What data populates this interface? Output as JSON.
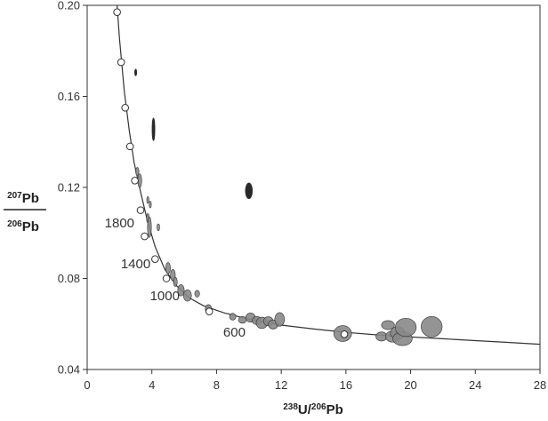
{
  "chart_data": {
    "type": "scatter",
    "xlabel": {
      "x_sup1": "238",
      "x_main1": "U/",
      "x_sup2": "206",
      "x_main2": "Pb"
    },
    "ylabel": {
      "numerator_sup": "207",
      "numerator_main": "Pb",
      "denominator_sup": "206",
      "denominator_main": "Pb"
    },
    "xlim": [
      0,
      28
    ],
    "ylim": [
      0.04,
      0.2
    ],
    "x_ticks": [
      "0",
      "4",
      "8",
      "12",
      "16",
      "20",
      "24",
      "28"
    ],
    "y_ticks": [
      "0.04",
      "0.08",
      "0.12",
      "0.16",
      "0.20"
    ],
    "grid": false,
    "concordia": {
      "curve": [
        [
          1.85,
          0.2
        ],
        [
          2.0,
          0.185
        ],
        [
          2.3,
          0.162
        ],
        [
          2.6,
          0.145
        ],
        [
          2.9,
          0.131
        ],
        [
          3.3,
          0.118
        ],
        [
          3.7,
          0.106
        ],
        [
          4.2,
          0.094
        ],
        [
          4.8,
          0.084
        ],
        [
          5.5,
          0.077
        ],
        [
          6.3,
          0.0715
        ],
        [
          7.2,
          0.068
        ],
        [
          8.5,
          0.0648
        ],
        [
          10,
          0.062
        ],
        [
          12,
          0.0595
        ],
        [
          14,
          0.0578
        ],
        [
          16,
          0.0563
        ],
        [
          18,
          0.0552
        ],
        [
          20,
          0.0543
        ],
        [
          22,
          0.0535
        ],
        [
          24,
          0.0527
        ],
        [
          26,
          0.0519
        ],
        [
          28,
          0.0511
        ]
      ],
      "age_markers": [
        [
          1.85,
          0.197
        ],
        [
          2.1,
          0.175
        ],
        [
          2.35,
          0.155
        ],
        [
          2.65,
          0.138
        ],
        [
          2.95,
          0.123
        ],
        [
          3.3,
          0.11
        ],
        [
          3.55,
          0.0985
        ],
        [
          4.2,
          0.0885
        ],
        [
          4.9,
          0.08
        ],
        [
          7.55,
          0.0655
        ],
        [
          15.9,
          0.0555
        ]
      ],
      "age_labels": [
        {
          "text": "1800",
          "x": 2.0,
          "y": 0.1025
        },
        {
          "text": "1400",
          "x": 3.0,
          "y": 0.0845
        },
        {
          "text": "1000",
          "x": 4.8,
          "y": 0.0705
        },
        {
          "text": "600",
          "x": 9.1,
          "y": 0.0545
        }
      ]
    },
    "points": [
      {
        "x": 3.1,
        "y": 0.127,
        "rx": 0.1,
        "ry": 0.0018,
        "color": "#888888"
      },
      {
        "x": 3.25,
        "y": 0.123,
        "rx": 0.12,
        "ry": 0.003,
        "color": "#888888"
      },
      {
        "x": 3.75,
        "y": 0.1145,
        "rx": 0.05,
        "ry": 0.0015,
        "color": "#888888"
      },
      {
        "x": 3.9,
        "y": 0.1125,
        "rx": 0.06,
        "ry": 0.0015,
        "color": "#888888"
      },
      {
        "x": 3.75,
        "y": 0.1065,
        "rx": 0.08,
        "ry": 0.002,
        "color": "#888888"
      },
      {
        "x": 3.85,
        "y": 0.1025,
        "rx": 0.12,
        "ry": 0.0045,
        "color": "#888888"
      },
      {
        "x": 4.4,
        "y": 0.1025,
        "rx": 0.08,
        "ry": 0.0015,
        "color": "#888888"
      },
      {
        "x": 5.0,
        "y": 0.0845,
        "rx": 0.15,
        "ry": 0.0025,
        "color": "#888888"
      },
      {
        "x": 5.3,
        "y": 0.0815,
        "rx": 0.15,
        "ry": 0.0025,
        "color": "#888888"
      },
      {
        "x": 5.45,
        "y": 0.0785,
        "rx": 0.12,
        "ry": 0.002,
        "color": "#888888"
      },
      {
        "x": 5.8,
        "y": 0.0748,
        "rx": 0.2,
        "ry": 0.0025,
        "color": "#888888"
      },
      {
        "x": 6.2,
        "y": 0.0725,
        "rx": 0.25,
        "ry": 0.0025,
        "color": "#888888"
      },
      {
        "x": 6.8,
        "y": 0.0733,
        "rx": 0.15,
        "ry": 0.0015,
        "color": "#888888"
      },
      {
        "x": 7.5,
        "y": 0.0665,
        "rx": 0.2,
        "ry": 0.002,
        "color": "#888888"
      },
      {
        "x": 9.0,
        "y": 0.0632,
        "rx": 0.2,
        "ry": 0.0015,
        "color": "#888888"
      },
      {
        "x": 9.6,
        "y": 0.0618,
        "rx": 0.25,
        "ry": 0.0015,
        "color": "#888888"
      },
      {
        "x": 10.1,
        "y": 0.0628,
        "rx": 0.3,
        "ry": 0.002,
        "color": "#888888"
      },
      {
        "x": 10.5,
        "y": 0.0615,
        "rx": 0.3,
        "ry": 0.0018,
        "color": "#888888"
      },
      {
        "x": 10.8,
        "y": 0.0605,
        "rx": 0.35,
        "ry": 0.0025,
        "color": "#888888"
      },
      {
        "x": 11.2,
        "y": 0.0612,
        "rx": 0.3,
        "ry": 0.002,
        "color": "#888888"
      },
      {
        "x": 11.5,
        "y": 0.0598,
        "rx": 0.3,
        "ry": 0.002,
        "color": "#888888"
      },
      {
        "x": 11.9,
        "y": 0.062,
        "rx": 0.3,
        "ry": 0.003,
        "color": "#888888"
      },
      {
        "x": 15.8,
        "y": 0.0558,
        "rx": 0.55,
        "ry": 0.0035,
        "color": "#888888"
      },
      {
        "x": 18.2,
        "y": 0.0545,
        "rx": 0.35,
        "ry": 0.002,
        "color": "#888888"
      },
      {
        "x": 18.6,
        "y": 0.0595,
        "rx": 0.4,
        "ry": 0.002,
        "color": "#888888"
      },
      {
        "x": 18.9,
        "y": 0.0545,
        "rx": 0.45,
        "ry": 0.0025,
        "color": "#888888"
      },
      {
        "x": 19.2,
        "y": 0.056,
        "rx": 0.45,
        "ry": 0.0028,
        "color": "#888888"
      },
      {
        "x": 19.5,
        "y": 0.0535,
        "rx": 0.6,
        "ry": 0.003,
        "color": "#888888"
      },
      {
        "x": 19.7,
        "y": 0.0585,
        "rx": 0.65,
        "ry": 0.004,
        "color": "#888888"
      },
      {
        "x": 21.3,
        "y": 0.0588,
        "rx": 0.65,
        "ry": 0.0045,
        "color": "#888888"
      },
      {
        "x": 3.0,
        "y": 0.1705,
        "rx": 0.06,
        "ry": 0.0015,
        "color": "#111111"
      },
      {
        "x": 4.1,
        "y": 0.1455,
        "rx": 0.09,
        "ry": 0.005,
        "color": "#111111"
      },
      {
        "x": 10.0,
        "y": 0.1185,
        "rx": 0.22,
        "ry": 0.0035,
        "color": "#111111"
      }
    ]
  }
}
